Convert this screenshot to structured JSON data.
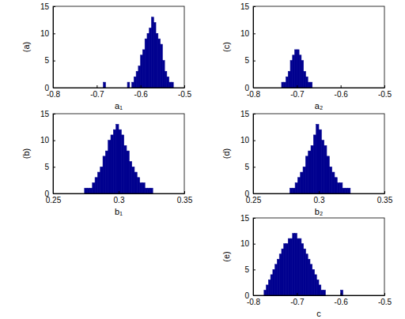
{
  "chart_data": [
    {
      "type": "histogram",
      "ylabel": "(a)",
      "xlabel": "a₁",
      "color": "#00008f",
      "grid": false,
      "xlim": [
        -0.8,
        -0.5
      ],
      "xticks": [
        -0.8,
        -0.7,
        -0.6,
        -0.5
      ],
      "ylim": [
        0,
        15
      ],
      "yticks": [
        0,
        5,
        10,
        15
      ],
      "bins": [
        -0.685,
        -0.68,
        -0.675,
        -0.67,
        -0.665,
        -0.66,
        -0.655,
        -0.65,
        -0.645,
        -0.64,
        -0.635,
        -0.63,
        -0.625,
        -0.62,
        -0.615,
        -0.61,
        -0.605,
        -0.6,
        -0.595,
        -0.59,
        -0.585,
        -0.58,
        -0.575,
        -0.57,
        -0.565,
        -0.56,
        -0.555,
        -0.55,
        -0.545,
        -0.54,
        -0.535,
        -0.53,
        -0.525
      ],
      "values": [
        1,
        0,
        0,
        0,
        0,
        0,
        0,
        0,
        0,
        0,
        0,
        1,
        0,
        1,
        2,
        3,
        4,
        6,
        7,
        9,
        10,
        11,
        13,
        12,
        10,
        9,
        8,
        5,
        3,
        2,
        1,
        1
      ]
    },
    {
      "type": "histogram",
      "ylabel": "(b)",
      "xlabel": "b₁",
      "color": "#00008f",
      "grid": false,
      "xlim": [
        0.25,
        0.35
      ],
      "xticks": [
        0.25,
        0.3,
        0.35
      ],
      "ylim": [
        0,
        15
      ],
      "yticks": [
        0,
        5,
        10,
        15
      ],
      "bins": [
        0.274,
        0.276,
        0.278,
        0.28,
        0.282,
        0.284,
        0.286,
        0.288,
        0.29,
        0.292,
        0.294,
        0.296,
        0.298,
        0.3,
        0.302,
        0.304,
        0.306,
        0.308,
        0.31,
        0.312,
        0.314,
        0.316,
        0.318,
        0.32,
        0.322,
        0.324,
        0.326
      ],
      "values": [
        1,
        1,
        1,
        2,
        3,
        4,
        5,
        7,
        8,
        10,
        11,
        12,
        13,
        12,
        11,
        9,
        8,
        6,
        5,
        4,
        3,
        2,
        2,
        1,
        1,
        1
      ]
    },
    {
      "type": "histogram",
      "ylabel": "(c)",
      "xlabel": "a₂",
      "color": "#00008f",
      "grid": false,
      "xlim": [
        -0.8,
        -0.5
      ],
      "xticks": [
        -0.8,
        -0.7,
        -0.6,
        -0.5
      ],
      "ylim": [
        0,
        15
      ],
      "yticks": [
        0,
        5,
        10,
        15
      ],
      "bins": [
        -0.735,
        -0.73,
        -0.725,
        -0.72,
        -0.715,
        -0.71,
        -0.705,
        -0.7,
        -0.695,
        -0.69,
        -0.685,
        -0.68,
        -0.675,
        -0.67,
        -0.665
      ],
      "values": [
        1,
        1,
        2,
        3,
        5,
        6,
        7,
        7,
        6,
        5,
        3,
        2,
        1,
        1
      ]
    },
    {
      "type": "histogram",
      "ylabel": "(d)",
      "xlabel": "b₂",
      "color": "#00008f",
      "grid": false,
      "xlim": [
        0.25,
        0.35
      ],
      "xticks": [
        0.25,
        0.3,
        0.35
      ],
      "ylim": [
        0,
        15
      ],
      "yticks": [
        0,
        5,
        10,
        15
      ],
      "bins": [
        0.278,
        0.28,
        0.282,
        0.284,
        0.286,
        0.288,
        0.29,
        0.292,
        0.294,
        0.296,
        0.298,
        0.3,
        0.302,
        0.304,
        0.306,
        0.308,
        0.31,
        0.312,
        0.314,
        0.316,
        0.318,
        0.32,
        0.322,
        0.324
      ],
      "values": [
        1,
        1,
        2,
        3,
        4,
        5,
        7,
        8,
        9,
        11,
        13,
        12,
        10,
        9,
        7,
        5,
        4,
        3,
        2,
        2,
        1,
        1,
        1
      ]
    },
    {
      "type": "histogram",
      "ylabel": "(e)",
      "xlabel": "c",
      "color": "#00008f",
      "grid": false,
      "xlim": [
        -0.8,
        -0.5
      ],
      "xticks": [
        -0.8,
        -0.7,
        -0.6,
        -0.5
      ],
      "ylim": [
        0,
        15
      ],
      "yticks": [
        0,
        5,
        10,
        15
      ],
      "bins": [
        -0.775,
        -0.77,
        -0.765,
        -0.76,
        -0.755,
        -0.75,
        -0.745,
        -0.74,
        -0.735,
        -0.73,
        -0.725,
        -0.72,
        -0.715,
        -0.71,
        -0.705,
        -0.7,
        -0.695,
        -0.69,
        -0.685,
        -0.68,
        -0.675,
        -0.67,
        -0.665,
        -0.66,
        -0.655,
        -0.65,
        -0.645,
        -0.64,
        -0.635,
        -0.63,
        -0.625,
        -0.62,
        -0.615,
        -0.61,
        -0.605,
        -0.6,
        -0.595
      ],
      "values": [
        1,
        2,
        3,
        4,
        5,
        6,
        7,
        8,
        9,
        10,
        10,
        11,
        11,
        12,
        12,
        11,
        11,
        10,
        9,
        8,
        7,
        6,
        5,
        4,
        3,
        2,
        1,
        1,
        0,
        0,
        0,
        0,
        0,
        0,
        0,
        1
      ]
    }
  ]
}
